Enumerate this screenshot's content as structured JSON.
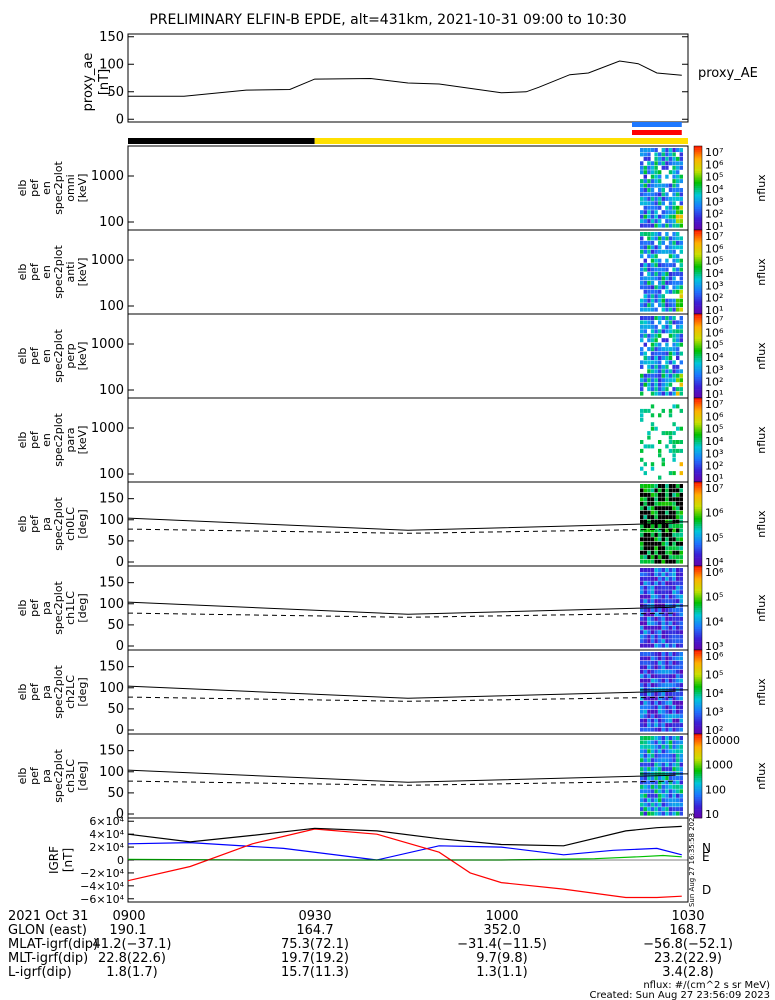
{
  "title": "PRELIMINARY ELFIN-B EPDE, alt=431km, 2021-10-31 09:00 to 10:30",
  "colors": {
    "bar_black": "#000000",
    "bar_yellow": "#ffe000",
    "bar_blue": "#1e78ff",
    "bar_red": "#ff0000",
    "grf_N": "#0000ff",
    "grf_E": "#00c000",
    "grf_D": "#ff0000"
  },
  "chart_data": [
    {
      "id": "proxy_ae",
      "type": "line",
      "ylabel": [
        "proxy_ae",
        "[nT]"
      ],
      "right_label": "proxy_AE",
      "ylim": [
        -5,
        155
      ],
      "yticks": [
        "150",
        "100",
        "50",
        "0"
      ],
      "ytick_values": [
        150,
        100,
        50,
        0
      ],
      "x_minutes": [
        0,
        9,
        19,
        26,
        30,
        39,
        45,
        50,
        60,
        64,
        66,
        71,
        74,
        79,
        82,
        85,
        89
      ],
      "y_values": [
        42,
        42,
        53,
        54,
        73,
        74,
        66,
        64,
        48,
        50,
        58,
        81,
        84,
        106,
        101,
        84,
        80
      ]
    },
    {
      "id": "omni",
      "type": "heatmap",
      "ylabel": [
        "elb",
        "pef",
        "en",
        "spec2plot",
        "omni",
        "[keV]"
      ],
      "yticks": [
        "1000",
        "100"
      ],
      "colorbar_ticks": [
        "10⁷",
        "10⁶",
        "10⁵",
        "10⁴",
        "10³",
        "10²",
        "10¹"
      ],
      "colorbar_label": "nflux"
    },
    {
      "id": "anti",
      "type": "heatmap",
      "ylabel": [
        "elb",
        "pef",
        "en",
        "spec2plot",
        "anti",
        "[keV]"
      ],
      "yticks": [
        "1000",
        "100"
      ],
      "colorbar_ticks": [
        "10⁷",
        "10⁶",
        "10⁵",
        "10⁴",
        "10³",
        "10²",
        "10¹"
      ],
      "colorbar_label": "nflux"
    },
    {
      "id": "perp",
      "type": "heatmap",
      "ylabel": [
        "elb",
        "pef",
        "en",
        "spec2plot",
        "perp",
        "[keV]"
      ],
      "yticks": [
        "1000",
        "100"
      ],
      "colorbar_ticks": [
        "10⁷",
        "10⁶",
        "10⁵",
        "10⁴",
        "10³",
        "10²",
        "10¹"
      ],
      "colorbar_label": "nflux"
    },
    {
      "id": "para",
      "type": "heatmap",
      "ylabel": [
        "elb",
        "pef",
        "en",
        "spec2plot",
        "para",
        "[keV]"
      ],
      "yticks": [
        "1000",
        "100"
      ],
      "colorbar_ticks": [
        "10⁷",
        "10⁶",
        "10⁵",
        "10⁴",
        "10³",
        "10²",
        "10¹"
      ],
      "colorbar_label": "nflux"
    },
    {
      "id": "ch0LC",
      "type": "heatmap",
      "ylabel": [
        "elb",
        "pef",
        "pa",
        "spec2plot",
        "ch0LC",
        "[deg]"
      ],
      "yticks": [
        "150",
        "100",
        "50",
        "0"
      ],
      "colorbar_ticks": [
        "10⁷",
        "10⁶",
        "10⁵",
        "10⁴"
      ],
      "colorbar_label": "nflux"
    },
    {
      "id": "ch1LC",
      "type": "heatmap",
      "ylabel": [
        "elb",
        "pef",
        "pa",
        "spec2plot",
        "ch1LC",
        "[deg]"
      ],
      "yticks": [
        "150",
        "100",
        "50",
        "0"
      ],
      "colorbar_ticks": [
        "10⁶",
        "10⁵",
        "10⁴",
        "10³"
      ],
      "colorbar_label": "nflux"
    },
    {
      "id": "ch2LC",
      "type": "heatmap",
      "ylabel": [
        "elb",
        "pef",
        "pa",
        "spec2plot",
        "ch2LC",
        "[deg]"
      ],
      "yticks": [
        "150",
        "100",
        "50",
        "0"
      ],
      "colorbar_ticks": [
        "10⁶",
        "10⁵",
        "10⁴",
        "10³",
        "10²"
      ],
      "colorbar_label": "nflux"
    },
    {
      "id": "ch3LC",
      "type": "heatmap",
      "ylabel": [
        "elb",
        "pef",
        "pa",
        "spec2plot",
        "ch3LC",
        "[deg]"
      ],
      "yticks": [
        "150",
        "100",
        "50",
        "0"
      ],
      "colorbar_ticks": [
        "10000",
        "1000",
        "100",
        "10"
      ],
      "colorbar_label": "nflux"
    },
    {
      "id": "igrf",
      "type": "line",
      "ylabel": [
        "IGRF",
        "[nT]"
      ],
      "yticks": [
        "6×10⁴",
        "4×10⁴",
        "2×10⁴",
        "0",
        "−2×10⁴",
        "−4×10⁴",
        "−6×10⁴"
      ],
      "ylim": [
        -65000,
        65000
      ],
      "series": [
        {
          "name": "N",
          "x_minutes": [
            0,
            10,
            25,
            40,
            50,
            60,
            70,
            78,
            85,
            89
          ],
          "values": [
            25000,
            27000,
            18000,
            0,
            22000,
            20000,
            8000,
            15000,
            18000,
            8000
          ]
        },
        {
          "name": "E",
          "x_minutes": [
            0,
            20,
            40,
            60,
            75,
            82,
            86,
            89
          ],
          "values": [
            1000,
            0,
            0,
            0,
            2000,
            5000,
            7000,
            5000
          ]
        },
        {
          "name": "D",
          "x_minutes": [
            0,
            10,
            20,
            30,
            40,
            50,
            55,
            60,
            70,
            80,
            85,
            89
          ],
          "values": [
            -32000,
            -10000,
            25000,
            48000,
            40000,
            12000,
            -20000,
            -35000,
            -45000,
            -58000,
            -58000,
            -56000
          ]
        },
        {
          "name": "total",
          "x_minutes": [
            0,
            10,
            20,
            30,
            40,
            50,
            60,
            70,
            80,
            85,
            89
          ],
          "values": [
            40000,
            28000,
            38000,
            49000,
            45000,
            33000,
            24000,
            22000,
            45000,
            50000,
            52000
          ]
        }
      ],
      "side_text": "Sun Aug 27 16:35:58 2023"
    },
    {
      "id": "attitude_bar",
      "type": "bar",
      "segments_minutes": [
        {
          "from": 0,
          "to": 30,
          "color": "black"
        },
        {
          "from": 30,
          "to": 90,
          "color": "yellow"
        }
      ],
      "flags_minutes": {
        "blue_from": 81,
        "red_from": 81,
        "to": 89
      }
    }
  ],
  "xaxis": {
    "ticks": [
      {
        "minute": 0,
        "label": "0900"
      },
      {
        "minute": 30,
        "label": "0930"
      },
      {
        "minute": 60,
        "label": "1000"
      },
      {
        "minute": 90,
        "label": "1030"
      }
    ]
  },
  "footer": {
    "date_label": "2021 Oct 31",
    "rows": [
      {
        "label": "GLON (east)",
        "values": [
          "190.1",
          "164.7",
          "352.0",
          "168.7"
        ]
      },
      {
        "label": "MLAT-igrf(dip)",
        "values": [
          "41.2(−37.1)",
          "75.3(72.1)",
          "−31.4(−11.5)",
          "−56.8(−52.1)"
        ]
      },
      {
        "label": "MLT-igrf(dip)",
        "values": [
          "22.8(22.6)",
          "19.7(19.2)",
          "9.7(9.8)",
          "23.2(22.9)"
        ]
      },
      {
        "label": "L-igrf(dip)",
        "values": [
          "1.8(1.7)",
          "15.7(11.3)",
          "1.3(1.1)",
          "3.4(2.8)"
        ]
      }
    ],
    "units_note": "nflux: #/(cm^2 s sr MeV)",
    "created": "Created: Sun Aug 27 23:56:09 2023"
  }
}
